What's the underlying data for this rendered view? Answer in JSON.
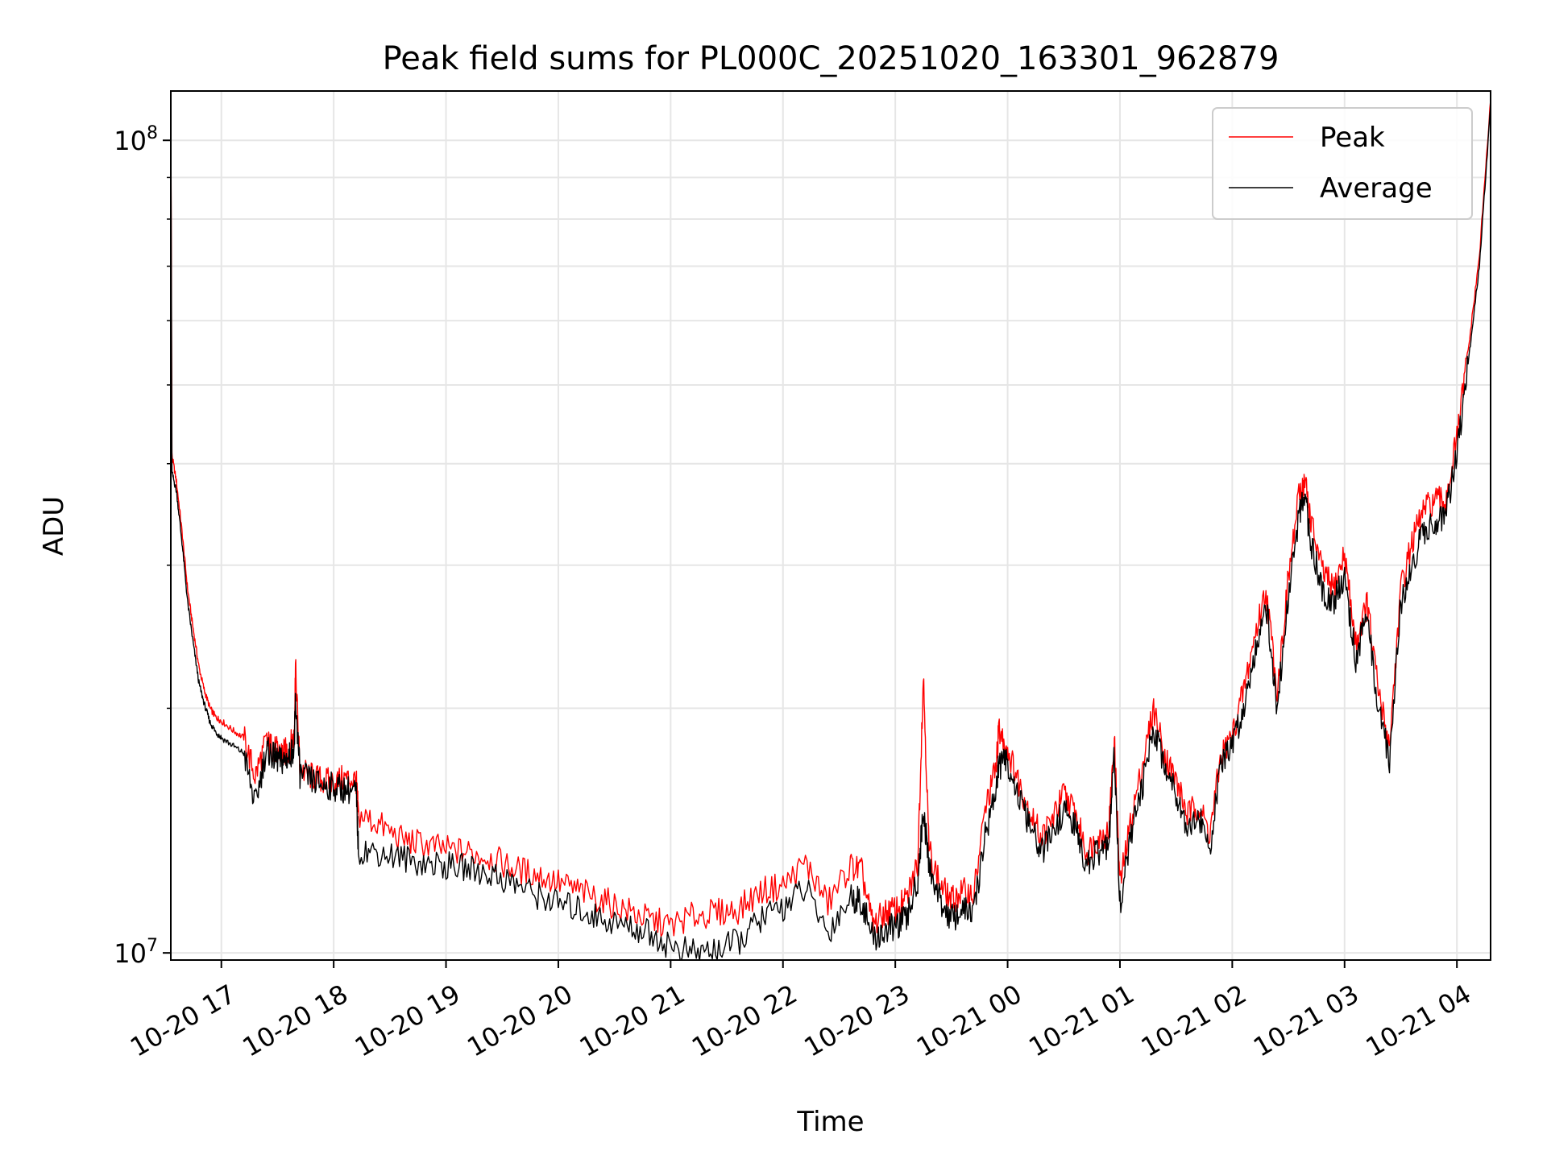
{
  "chart_data": {
    "type": "line",
    "title": "Peak field sums for PL000C_20251020_163301_962879",
    "xlabel": "Time",
    "ylabel": "ADU",
    "y_scale": "log",
    "ylim": [
      9800000,
      115000000
    ],
    "xlim_hours": [
      16.55,
      28.3
    ],
    "x_tick_hours": [
      17,
      18,
      19,
      20,
      21,
      22,
      23,
      24,
      25,
      26,
      27,
      28
    ],
    "x_tick_labels": [
      "10-20 17",
      "10-20 18",
      "10-20 19",
      "10-20 20",
      "10-20 21",
      "10-20 22",
      "10-20 23",
      "10-21 00",
      "10-21 01",
      "10-21 02",
      "10-21 03",
      "10-21 04"
    ],
    "y_major_ticks": [
      {
        "value": 10000000,
        "base": "10",
        "exp": "7"
      },
      {
        "value": 100000000,
        "base": "10",
        "exp": "8"
      }
    ],
    "y_minor_ticks": [
      20000000,
      30000000,
      40000000,
      50000000,
      60000000,
      70000000,
      80000000,
      90000000
    ],
    "grid": true,
    "legend_position": "top-right",
    "legend": [
      "Peak",
      "Average"
    ],
    "colors": {
      "Peak": "#ff0000",
      "Average": "#000000"
    },
    "x_hours": [
      16.55,
      16.56,
      16.6,
      16.65,
      16.7,
      16.75,
      16.8,
      16.85,
      16.9,
      16.95,
      17.0,
      17.1,
      17.2,
      17.3,
      17.4,
      17.45,
      17.5,
      17.55,
      17.6,
      17.65,
      17.66,
      17.7,
      17.8,
      17.9,
      18.0,
      18.1,
      18.2,
      18.22,
      18.4,
      18.6,
      18.8,
      19.0,
      19.2,
      19.4,
      19.6,
      19.8,
      20.0,
      20.2,
      20.4,
      20.6,
      20.8,
      21.0,
      21.2,
      21.4,
      21.6,
      21.8,
      22.0,
      22.2,
      22.4,
      22.6,
      22.7,
      22.8,
      22.9,
      23.0,
      23.1,
      23.2,
      23.25,
      23.3,
      23.4,
      23.5,
      23.6,
      23.7,
      23.8,
      23.9,
      23.92,
      24.0,
      24.1,
      24.2,
      24.3,
      24.4,
      24.5,
      24.6,
      24.7,
      24.8,
      24.9,
      24.95,
      25.0,
      25.1,
      25.2,
      25.3,
      25.4,
      25.5,
      25.6,
      25.7,
      25.8,
      25.9,
      26.0,
      26.1,
      26.2,
      26.3,
      26.4,
      26.5,
      26.6,
      26.65,
      26.7,
      26.8,
      26.9,
      27.0,
      27.1,
      27.2,
      27.3,
      27.4,
      27.5,
      27.6,
      27.7,
      27.8,
      27.9,
      28.0,
      28.1,
      28.2,
      28.3
    ],
    "series": [
      {
        "name": "Peak",
        "values": [
          115000000,
          41000000,
          38000000,
          33000000,
          28000000,
          25000000,
          22500000,
          21000000,
          20000000,
          19500000,
          19300000,
          18800000,
          18400000,
          16500000,
          18200000,
          17900000,
          17700000,
          17600000,
          17800000,
          18500000,
          22500000,
          16800000,
          16500000,
          16300000,
          16200000,
          16400000,
          16300000,
          14800000,
          14400000,
          13800000,
          13600000,
          13400000,
          13300000,
          13100000,
          12700000,
          12500000,
          12200000,
          11900000,
          11600000,
          11300000,
          11000000,
          10800000,
          11100000,
          11200000,
          11300000,
          11900000,
          12100000,
          12900000,
          11500000,
          12800000,
          12600000,
          10800000,
          11200000,
          11300000,
          11600000,
          12900000,
          22000000,
          13400000,
          12100000,
          11600000,
          11900000,
          11800000,
          15000000,
          17000000,
          18800000,
          17800000,
          16200000,
          14900000,
          13900000,
          14600000,
          15700000,
          14900000,
          13300000,
          13800000,
          14100000,
          18300000,
          12100000,
          14600000,
          17000000,
          20000000,
          17500000,
          16300000,
          14800000,
          15200000,
          14000000,
          17500000,
          18500000,
          21000000,
          24500000,
          28000000,
          21000000,
          29000000,
          37000000,
          38000000,
          34000000,
          29500000,
          28000000,
          31000000,
          24000000,
          27000000,
          21000000,
          18000000,
          28000000,
          32000000,
          35000000,
          36000000,
          36000000,
          43000000,
          55000000,
          72000000,
          112000000
        ]
      },
      {
        "name": "Average",
        "values": [
          110000000,
          39000000,
          37000000,
          32000000,
          27000000,
          24000000,
          21500000,
          20200000,
          19200000,
          18700000,
          18400000,
          18000000,
          17600000,
          15200000,
          17800000,
          17500000,
          17300000,
          17200000,
          17400000,
          18000000,
          20500000,
          16600000,
          16300000,
          16100000,
          16000000,
          15900000,
          15800000,
          13400000,
          13300000,
          13100000,
          12900000,
          12800000,
          12700000,
          12500000,
          12200000,
          11800000,
          11500000,
          11300000,
          11000000,
          10800000,
          10600000,
          10200000,
          10000000,
          10100000,
          10300000,
          11000000,
          11400000,
          12000000,
          10600000,
          11700000,
          11600000,
          10400000,
          10600000,
          10800000,
          11000000,
          12300000,
          15000000,
          12800000,
          11600000,
          11000000,
          11300000,
          11200000,
          14000000,
          16000000,
          17000000,
          17200000,
          15500000,
          14300000,
          13300000,
          14000000,
          15000000,
          14300000,
          12800000,
          13300000,
          13500000,
          17600000,
          11500000,
          14000000,
          16000000,
          19000000,
          17000000,
          15800000,
          14300000,
          14700000,
          13500000,
          17000000,
          18000000,
          20000000,
          23500000,
          27000000,
          20000000,
          27500000,
          35000000,
          36000000,
          32000000,
          28000000,
          27000000,
          29000000,
          23000000,
          26000000,
          20000000,
          17300000,
          27000000,
          30000000,
          33000000,
          34000000,
          34500000,
          41000000,
          53000000,
          70000000,
          110000000
        ]
      }
    ]
  }
}
